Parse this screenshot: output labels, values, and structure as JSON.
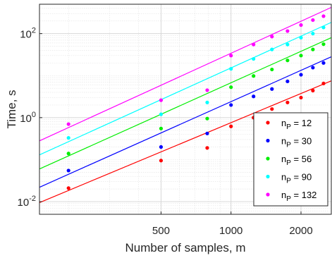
{
  "chart_data": {
    "type": "scatter",
    "xlabel": "Number of samples, m",
    "ylabel": "Time, s",
    "x_scale": "log",
    "y_scale": "log",
    "xlim": [
      150,
      2700
    ],
    "ylim": [
      0.005,
      500
    ],
    "x_ticks": [
      {
        "value": 500,
        "label": "500"
      },
      {
        "value": 1000,
        "label": "1000"
      },
      {
        "value": 2000,
        "label": "2000"
      }
    ],
    "y_ticks": [
      {
        "value": 0.01,
        "base": "10",
        "exp": "-2"
      },
      {
        "value": 1,
        "base": "10",
        "exp": "0"
      },
      {
        "value": 100,
        "base": "10",
        "exp": "2"
      }
    ],
    "grid": true,
    "legend_position": "bottom-right",
    "series": [
      {
        "name_main": "n",
        "name_sub": "P",
        "name_rest": " = 12",
        "color": "#ff0000",
        "x": [
          200,
          500,
          790,
          1000,
          1250,
          1500,
          1750,
          2000,
          2250,
          2500
        ],
        "y": [
          0.021,
          0.095,
          0.19,
          0.62,
          1.0,
          1.6,
          2.3,
          3.0,
          4.4,
          6.5
        ],
        "fit": [
          [
            150,
            0.0095
          ],
          [
            2700,
            7.5
          ]
        ]
      },
      {
        "name_main": "n",
        "name_sub": "P",
        "name_rest": " = 30",
        "color": "#0000ff",
        "x": [
          200,
          500,
          790,
          1000,
          1250,
          1500,
          1750,
          2000,
          2250,
          2500
        ],
        "y": [
          0.055,
          0.2,
          0.42,
          2.0,
          3.2,
          4.8,
          7.3,
          10.5,
          15.5,
          20.0
        ],
        "fit": [
          [
            150,
            0.022
          ],
          [
            2700,
            28
          ]
        ]
      },
      {
        "name_main": "n",
        "name_sub": "P",
        "name_rest": " = 56",
        "color": "#00ee00",
        "x": [
          200,
          500,
          790,
          1000,
          1250,
          1500,
          1750,
          2000,
          2250,
          2500
        ],
        "y": [
          0.14,
          0.55,
          0.95,
          5.3,
          9.8,
          14.0,
          23.0,
          30.0,
          42.0,
          56.0
        ],
        "fit": [
          [
            150,
            0.06
          ],
          [
            2700,
            80
          ]
        ]
      },
      {
        "name_main": "n",
        "name_sub": "P",
        "name_rest": " = 90",
        "color": "#00ffff",
        "x": [
          200,
          500,
          790,
          1000,
          1250,
          1500,
          1750,
          2000,
          2250,
          2500
        ],
        "y": [
          0.33,
          1.2,
          2.3,
          14.5,
          25.0,
          42.0,
          55.0,
          80.0,
          100.0,
          140.0
        ],
        "fit": [
          [
            150,
            0.13
          ],
          [
            2700,
            185
          ]
        ]
      },
      {
        "name_main": "n",
        "name_sub": "P",
        "name_rest": " = 132",
        "color": "#ff00ff",
        "x": [
          200,
          500,
          790,
          1000,
          1250,
          1500,
          1750,
          2000,
          2250,
          2500
        ],
        "y": [
          0.7,
          2.6,
          4.5,
          30.0,
          55.0,
          85.0,
          115.0,
          160.0,
          210.0,
          260.0
        ],
        "fit": [
          [
            150,
            0.28
          ],
          [
            2700,
            420
          ]
        ]
      }
    ]
  }
}
